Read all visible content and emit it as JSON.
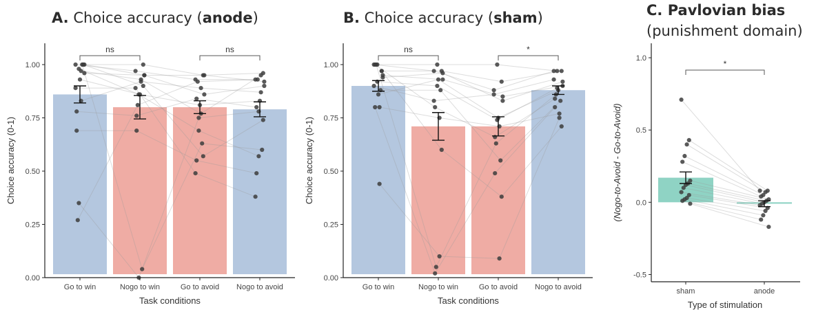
{
  "panels": {
    "a": {
      "letter": "A.",
      "pre": "Choice accuracy (",
      "bold": "anode",
      "post": ")"
    },
    "b": {
      "letter": "B.",
      "pre": "Choice accuracy (",
      "bold": "sham",
      "post": ")"
    },
    "c": {
      "line1": "C. Pavlovian bias",
      "line2": "(punishment domain)"
    }
  },
  "chart_data": [
    {
      "id": "A",
      "type": "bar",
      "categories": [
        "Go to win",
        "Nogo to win",
        "Go to avoid",
        "Nogo to avoid"
      ],
      "values": [
        0.86,
        0.8,
        0.8,
        0.79
      ],
      "error": [
        0.04,
        0.055,
        0.03,
        0.035
      ],
      "bar_colors": [
        "#b4c7df",
        "#efaca4",
        "#efaca4",
        "#b4c7df"
      ],
      "xlabel": "Task conditions",
      "ylabel": "Choice accuracy (0-1)",
      "ylim": [
        0,
        1.1
      ],
      "yticks": [
        0.0,
        0.25,
        0.5,
        0.75,
        1.0
      ],
      "ytick_labels": [
        "0.00",
        "0.25",
        "0.50",
        "0.75",
        "1.00"
      ],
      "points": [
        [
          1.0,
          1.0,
          0.97,
          0.35,
          0.69,
          0.96,
          1.0,
          0.93,
          0.27,
          0.89,
          1.0,
          0.83,
          0.98,
          0.78,
          1.0
        ],
        [
          0.97,
          1.0,
          0.93,
          0.0,
          0.69,
          0.95,
          0.04,
          0.86,
          0.81,
          0.89,
          0.9,
          0.92,
          0.86,
          0.76,
          0.95
        ],
        [
          0.93,
          0.95,
          0.77,
          0.75,
          0.55,
          0.86,
          0.63,
          0.81,
          0.92,
          0.49,
          0.57,
          0.89,
          0.69,
          0.84,
          0.95
        ],
        [
          0.93,
          0.96,
          0.95,
          0.78,
          0.49,
          0.9,
          0.6,
          0.83,
          0.93,
          0.38,
          0.74,
          0.87,
          0.57,
          0.8,
          0.92
        ]
      ],
      "sig": [
        {
          "from": 0,
          "to": 1,
          "label": "ns"
        },
        {
          "from": 2,
          "to": 3,
          "label": "ns"
        }
      ]
    },
    {
      "id": "B",
      "type": "bar",
      "categories": [
        "Go to win",
        "Nogo to win",
        "Go to avoid",
        "Nogo to avoid"
      ],
      "values": [
        0.9,
        0.71,
        0.71,
        0.88
      ],
      "error": [
        0.025,
        0.065,
        0.045,
        0.02
      ],
      "bar_colors": [
        "#b4c7df",
        "#efaca4",
        "#efaca4",
        "#b4c7df"
      ],
      "xlabel": "Task conditions",
      "ylabel": "Choice accuracy (0-1)",
      "ylim": [
        0,
        1.1
      ],
      "yticks": [
        0.0,
        0.25,
        0.5,
        0.75,
        1.0
      ],
      "ytick_labels": [
        "0.00",
        "0.25",
        "0.50",
        "0.75",
        "1.00"
      ],
      "points": [
        [
          1.0,
          0.97,
          0.44,
          1.0,
          0.8,
          0.94,
          0.88,
          0.86,
          1.0,
          0.9,
          0.97,
          0.8,
          0.92,
          1.0,
          0.95
        ],
        [
          0.97,
          0.6,
          0.1,
          1.0,
          0.02,
          0.96,
          0.88,
          0.93,
          0.05,
          0.83,
          0.97,
          0.75,
          0.9,
          0.8,
          0.93
        ],
        [
          0.88,
          0.38,
          0.09,
          1.0,
          0.49,
          0.83,
          0.55,
          0.75,
          0.63,
          0.86,
          0.92,
          0.71,
          0.74,
          0.66,
          0.85
        ],
        [
          0.97,
          0.71,
          0.75,
          0.97,
          0.8,
          0.92,
          0.83,
          0.88,
          0.86,
          0.93,
          0.97,
          0.77,
          0.89,
          0.84,
          0.9
        ]
      ],
      "sig": [
        {
          "from": 0,
          "to": 1,
          "label": "ns"
        },
        {
          "from": 2,
          "to": 3,
          "label": "*"
        }
      ]
    },
    {
      "id": "C",
      "type": "bar",
      "categories": [
        "sham",
        "anode"
      ],
      "values": [
        0.17,
        -0.01
      ],
      "error": [
        0.04,
        0.02
      ],
      "bar_colors": [
        "#8fd3c4",
        "#8fd3c4"
      ],
      "xlabel": "Type of stimulation",
      "ylabel": "(Nogo-to-Avoid - Go-to-Avoid)",
      "ylim": [
        -0.55,
        1.1
      ],
      "yticks": [
        -0.5,
        0.0,
        0.5,
        1.0
      ],
      "ytick_labels": [
        "-0.5",
        "0.0",
        "0.5",
        "1.0"
      ],
      "points": [
        [
          0.71,
          0.43,
          0.4,
          0.32,
          0.28,
          0.15,
          0.13,
          0.12,
          0.1,
          0.07,
          0.05,
          0.03,
          0.02,
          0.01,
          -0.01
        ],
        [
          0.08,
          0.08,
          0.07,
          0.05,
          0.04,
          0.02,
          0.01,
          0.0,
          -0.01,
          -0.02,
          -0.04,
          -0.06,
          -0.09,
          -0.12,
          -0.17
        ]
      ],
      "sig": [
        {
          "from": 0,
          "to": 1,
          "label": "*"
        }
      ]
    }
  ]
}
